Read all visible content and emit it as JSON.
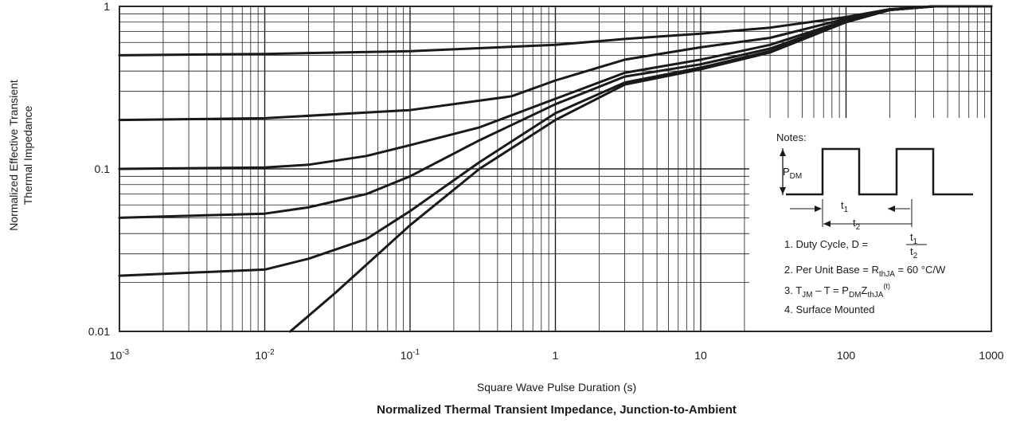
{
  "chart_data": {
    "type": "line",
    "title": "Normalized Thermal Transient Impedance, Junction-to-Ambient",
    "xlabel": "Square Wave Pulse Duration (s)",
    "ylabel_lines": [
      "Normalized Effective Transient",
      "Thermal Impedance"
    ],
    "x_scale": "log",
    "y_scale": "log",
    "xlim": [
      0.001,
      1000
    ],
    "ylim": [
      0.01,
      1
    ],
    "x_ticks": [
      {
        "value": 0.001,
        "base": "10",
        "exp": "-3"
      },
      {
        "value": 0.01,
        "base": "10",
        "exp": "-2"
      },
      {
        "value": 0.1,
        "base": "10",
        "exp": "-1"
      },
      {
        "value": 1,
        "base": "1",
        "exp": ""
      },
      {
        "value": 10,
        "base": "10",
        "exp": ""
      },
      {
        "value": 100,
        "base": "100",
        "exp": ""
      },
      {
        "value": 1000,
        "base": "1000",
        "exp": ""
      }
    ],
    "y_ticks": [
      {
        "value": 1,
        "label": "1"
      },
      {
        "value": 0.1,
        "label": "0.1"
      },
      {
        "value": 0.01,
        "label": "0.01"
      }
    ],
    "grid": true,
    "series": [
      {
        "x": [
          0.001,
          0.01,
          0.1,
          1,
          3,
          10,
          30,
          100,
          200,
          400,
          1000
        ],
        "y": [
          0.5,
          0.51,
          0.53,
          0.58,
          0.63,
          0.68,
          0.74,
          0.86,
          0.96,
          1.0,
          1.0
        ]
      },
      {
        "x": [
          0.001,
          0.01,
          0.1,
          0.5,
          1,
          3,
          10,
          30,
          100,
          200,
          400,
          1000
        ],
        "y": [
          0.2,
          0.205,
          0.23,
          0.28,
          0.35,
          0.47,
          0.56,
          0.64,
          0.84,
          0.96,
          1.0,
          1.0
        ]
      },
      {
        "x": [
          0.001,
          0.01,
          0.02,
          0.05,
          0.1,
          0.3,
          1,
          3,
          10,
          30,
          100,
          200,
          400,
          1000
        ],
        "y": [
          0.1,
          0.102,
          0.106,
          0.12,
          0.14,
          0.18,
          0.27,
          0.39,
          0.47,
          0.58,
          0.82,
          0.95,
          1.0,
          1.0
        ]
      },
      {
        "x": [
          0.001,
          0.01,
          0.02,
          0.05,
          0.1,
          0.3,
          1,
          3,
          10,
          30,
          100,
          200,
          400,
          1000
        ],
        "y": [
          0.05,
          0.053,
          0.058,
          0.07,
          0.09,
          0.15,
          0.25,
          0.37,
          0.44,
          0.55,
          0.81,
          0.95,
          1.0,
          1.0
        ]
      },
      {
        "x": [
          0.001,
          0.01,
          0.02,
          0.05,
          0.1,
          0.3,
          1,
          3,
          10,
          30,
          100,
          200,
          400,
          1000
        ],
        "y": [
          0.022,
          0.024,
          0.028,
          0.037,
          0.055,
          0.11,
          0.22,
          0.34,
          0.42,
          0.53,
          0.8,
          0.95,
          1.0,
          1.0
        ]
      },
      {
        "x": [
          0.015,
          0.03,
          0.1,
          0.3,
          1,
          3,
          10,
          30,
          100,
          200,
          400,
          1000
        ],
        "y": [
          0.01,
          0.017,
          0.045,
          0.1,
          0.2,
          0.33,
          0.41,
          0.52,
          0.8,
          0.95,
          1.0,
          1.0
        ]
      }
    ]
  },
  "notes": {
    "heading": "Notes:",
    "pdm_main": "P",
    "pdm_sub": "DM",
    "t1_main": "t",
    "t1_sub": "1",
    "t2_main": "t",
    "t2_sub": "2",
    "item1_text": "1. Duty Cycle, D =",
    "item1_num_main": "t",
    "item1_num_sub": "1",
    "item1_den_main": "t",
    "item1_den_sub": "2",
    "item2_pre": "2. Per Unit Base = R",
    "item2_sub": "thJA",
    "item2_post": " = 60 °C/W",
    "item3_pre": "3. T",
    "item3_sub1": "JM",
    "item3_mid": " – T   = P",
    "item3_sub2": "DM",
    "item3_z": "Z",
    "item3_sub3": "thJA",
    "item3_sup": "(t)",
    "item4": "4. Surface Mounted"
  }
}
